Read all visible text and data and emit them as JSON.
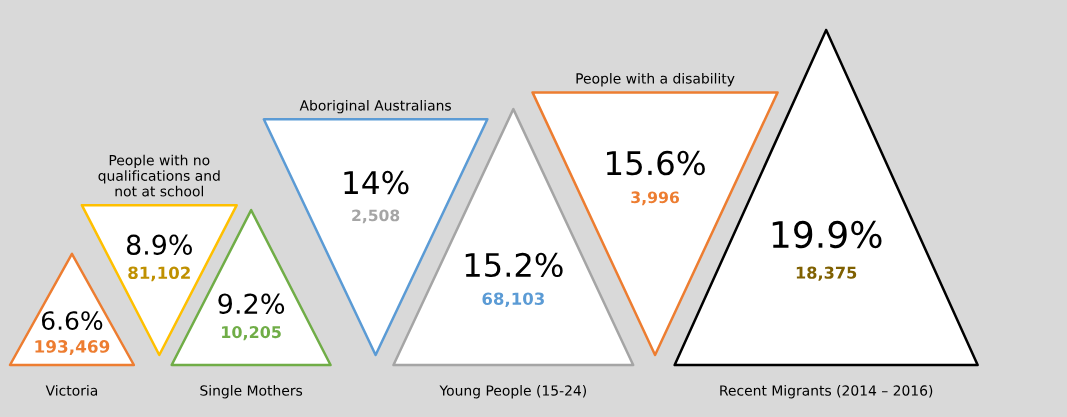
{
  "chart_data": {
    "type": "other",
    "categories": [
      "Victoria",
      "People with no\nqualifications and\nnot at school",
      "Single Mothers",
      "Aboriginal Australians",
      "Young People (15-24)",
      "People with a disability",
      "Recent Migrants (2014 – 2016)"
    ],
    "series": [
      {
        "values": [
          6.6,
          8.9,
          9.2,
          14,
          15.2,
          15.6,
          19.9
        ],
        "value_labels": [
          "6.6%",
          "8.9%",
          "9.2%",
          "14%",
          "15.2%",
          "15.6%",
          "19.9%"
        ],
        "colors": [
          "#ed7d31",
          "#ffc000",
          "#70ad47",
          "#5b9bd5",
          "#a5a5a5",
          "#ed7d31",
          "#000000"
        ]
      },
      {
        "values": [
          193469,
          81102,
          10205,
          2508,
          68103,
          3996,
          18375
        ],
        "value_labels": [
          "193,469",
          "81,102",
          "10,205",
          "2,508",
          "68,103",
          "3,996",
          "18,375"
        ],
        "colors": [
          "#ed7d31",
          "#bf9000",
          "#70ad47",
          "#a5a5a5",
          "#5b9bd5",
          "#ed7d31",
          "#7f6000"
        ]
      }
    ]
  }
}
